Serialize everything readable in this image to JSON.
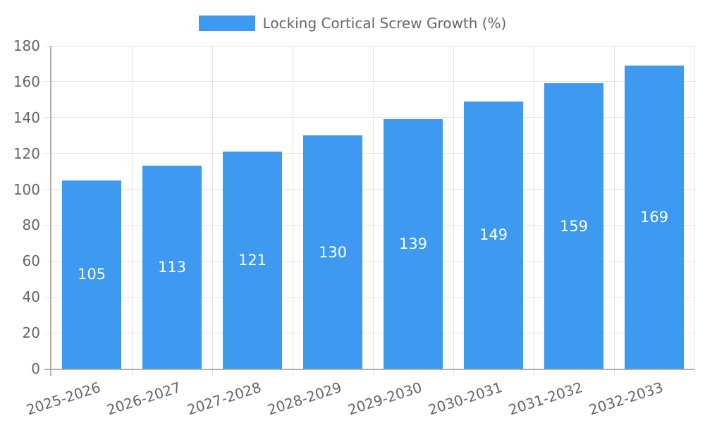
{
  "chart_data": {
    "type": "bar",
    "title": "Locking Cortical Screw Growth (%)",
    "legend_position": "top",
    "categories": [
      "2025-2026",
      "2026-2027",
      "2027-2028",
      "2028-2029",
      "2029-2030",
      "2030-2031",
      "2031-2032",
      "2032-2033"
    ],
    "values": [
      105,
      113,
      121,
      130,
      139,
      149,
      159,
      169
    ],
    "xlabel": "",
    "ylabel": "",
    "ylim": [
      0,
      180
    ],
    "yticks": [
      0,
      20,
      40,
      60,
      80,
      100,
      120,
      140,
      160,
      180
    ],
    "grid": true,
    "value_labels_position": "inside-center",
    "x_label_rotation_deg": -18,
    "colors": {
      "bar": "#3D9AF0",
      "value_label": "#FFFFFF",
      "text": "#666666",
      "grid": "#E5E5E5",
      "axis_line": "#AFAFAF"
    }
  }
}
